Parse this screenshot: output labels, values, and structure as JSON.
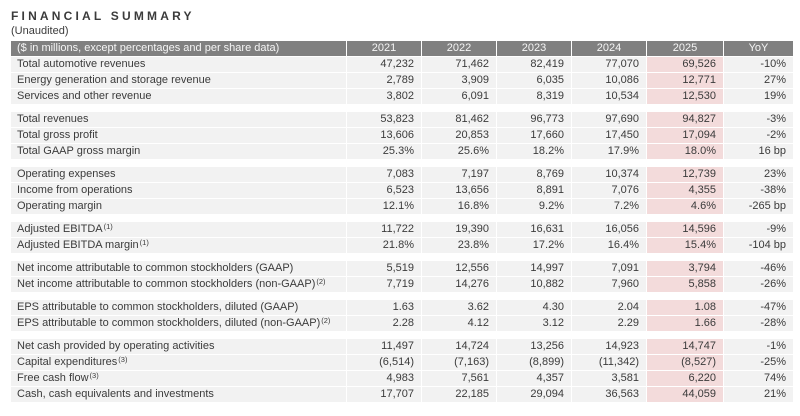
{
  "title": "FINANCIAL SUMMARY",
  "subtitle": "(Unaudited)",
  "colors": {
    "header_bg": "#808080",
    "header_text": "#f5f5f5",
    "row_bg": "#f2f2f2",
    "highlight_bg": "#f3dbdb",
    "text_dark": "#3b3b3b"
  },
  "table": {
    "header": {
      "label": "($ in millions, except percentages and per share data)",
      "columns": [
        "2021",
        "2022",
        "2023",
        "2024",
        "2025",
        "YoY"
      ]
    },
    "highlight_column": "2025",
    "sections": [
      {
        "rows": [
          {
            "label": "Total automotive revenues",
            "sup": "",
            "values": [
              "47,232",
              "71,462",
              "82,419",
              "77,070",
              "69,526",
              "-10%"
            ]
          },
          {
            "label": "Energy generation and storage revenue",
            "sup": "",
            "values": [
              "2,789",
              "3,909",
              "6,035",
              "10,086",
              "12,771",
              "27%"
            ]
          },
          {
            "label": "Services and other revenue",
            "sup": "",
            "values": [
              "3,802",
              "6,091",
              "8,319",
              "10,534",
              "12,530",
              "19%"
            ]
          }
        ]
      },
      {
        "rows": [
          {
            "label": "Total revenues",
            "sup": "",
            "values": [
              "53,823",
              "81,462",
              "96,773",
              "97,690",
              "94,827",
              "-3%"
            ]
          },
          {
            "label": "Total gross profit",
            "sup": "",
            "values": [
              "13,606",
              "20,853",
              "17,660",
              "17,450",
              "17,094",
              "-2%"
            ]
          },
          {
            "label": "Total GAAP gross margin",
            "sup": "",
            "values": [
              "25.3%",
              "25.6%",
              "18.2%",
              "17.9%",
              "18.0%",
              "16 bp"
            ]
          }
        ]
      },
      {
        "rows": [
          {
            "label": "Operating expenses",
            "sup": "",
            "values": [
              "7,083",
              "7,197",
              "8,769",
              "10,374",
              "12,739",
              "23%"
            ]
          },
          {
            "label": "Income from operations",
            "sup": "",
            "values": [
              "6,523",
              "13,656",
              "8,891",
              "7,076",
              "4,355",
              "-38%"
            ]
          },
          {
            "label": "Operating margin",
            "sup": "",
            "values": [
              "12.1%",
              "16.8%",
              "9.2%",
              "7.2%",
              "4.6%",
              "-265 bp"
            ]
          }
        ]
      },
      {
        "rows": [
          {
            "label": "Adjusted EBITDA",
            "sup": "(1)",
            "values": [
              "11,722",
              "19,390",
              "16,631",
              "16,056",
              "14,596",
              "-9%"
            ]
          },
          {
            "label": "Adjusted EBITDA margin",
            "sup": "(1)",
            "values": [
              "21.8%",
              "23.8%",
              "17.2%",
              "16.4%",
              "15.4%",
              "-104 bp"
            ]
          }
        ]
      },
      {
        "rows": [
          {
            "label": "Net income attributable to common stockholders (GAAP)",
            "sup": "",
            "values": [
              "5,519",
              "12,556",
              "14,997",
              "7,091",
              "3,794",
              "-46%"
            ]
          },
          {
            "label": "Net income attributable to common stockholders (non-GAAP)",
            "sup": "(2)",
            "values": [
              "7,719",
              "14,276",
              "10,882",
              "7,960",
              "5,858",
              "-26%"
            ]
          }
        ]
      },
      {
        "rows": [
          {
            "label": "EPS attributable to common stockholders, diluted (GAAP)",
            "sup": "",
            "values": [
              "1.63",
              "3.62",
              "4.30",
              "2.04",
              "1.08",
              "-47%"
            ]
          },
          {
            "label": "EPS attributable to common stockholders, diluted (non-GAAP)",
            "sup": "(2)",
            "values": [
              "2.28",
              "4.12",
              "3.12",
              "2.29",
              "1.66",
              "-28%"
            ]
          }
        ]
      },
      {
        "rows": [
          {
            "label": "Net cash provided by operating activities",
            "sup": "",
            "values": [
              "11,497",
              "14,724",
              "13,256",
              "14,923",
              "14,747",
              "-1%"
            ]
          },
          {
            "label": "Capital expenditures",
            "sup": "(3)",
            "values": [
              "(6,514)",
              "(7,163)",
              "(8,899)",
              "(11,342)",
              "(8,527)",
              "-25%"
            ]
          },
          {
            "label": "Free cash flow",
            "sup": "(3)",
            "values": [
              "4,983",
              "7,561",
              "4,357",
              "3,581",
              "6,220",
              "74%"
            ]
          },
          {
            "label": "Cash, cash equivalents and investments",
            "sup": "",
            "values": [
              "17,707",
              "22,185",
              "29,094",
              "36,563",
              "44,059",
              "21%"
            ]
          }
        ]
      }
    ]
  }
}
